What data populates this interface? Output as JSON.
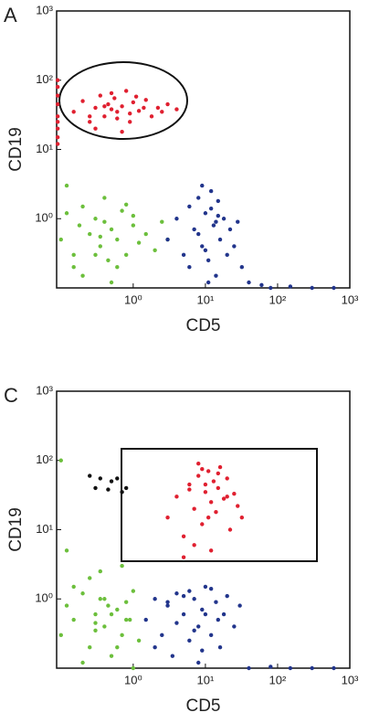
{
  "chart_data": [
    {
      "type": "scatter",
      "panel": "A",
      "x_label": "CD5",
      "y_label": "CD19",
      "xscale": "log",
      "yscale": "log",
      "xlim": [
        0.087,
        1000
      ],
      "ylim": [
        0.1,
        1000
      ],
      "xticks": [
        {
          "value": 1,
          "label": "10⁰"
        },
        {
          "value": 10,
          "label": "10¹"
        },
        {
          "value": 100,
          "label": "10²"
        },
        {
          "value": 1000,
          "label": "10³"
        }
      ],
      "yticks": [
        {
          "value": 1,
          "label": "10⁰"
        },
        {
          "value": 10,
          "label": "10¹"
        },
        {
          "value": 100,
          "label": "10²"
        },
        {
          "value": 1000,
          "label": "10³"
        }
      ],
      "series": [
        {
          "color": "#e02030",
          "x": [
            0.15,
            0.2,
            0.25,
            0.3,
            0.35,
            0.4,
            0.45,
            0.5,
            0.55,
            0.6,
            0.7,
            0.8,
            0.9,
            1,
            1.2,
            1.5,
            1.8,
            2.2,
            3,
            4,
            0.3,
            0.5,
            0.7,
            1.1,
            0.4,
            0.6,
            0.9,
            1.4,
            0.25,
            2.5,
            0.09,
            0.09,
            0.09,
            0.09,
            0.09,
            0.09,
            0.09,
            0.09,
            0.09
          ],
          "y": [
            35,
            50,
            25,
            40,
            60,
            30,
            45,
            38,
            55,
            28,
            42,
            70,
            33,
            48,
            36,
            52,
            30,
            40,
            45,
            38,
            20,
            65,
            18,
            58,
            42,
            35,
            25,
            40,
            30,
            35,
            12,
            20,
            30,
            45,
            60,
            80,
            100,
            15,
            25
          ]
        },
        {
          "color": "#6cbf3c",
          "x": [
            0.1,
            0.12,
            0.15,
            0.18,
            0.2,
            0.25,
            0.3,
            0.35,
            0.4,
            0.45,
            0.5,
            0.6,
            0.7,
            0.8,
            1,
            1.2,
            1.5,
            2,
            2.5,
            3,
            0.15,
            0.3,
            0.5,
            0.8,
            0.2,
            0.4,
            0.6,
            1,
            0.12,
            0.35
          ],
          "y": [
            0.5,
            1.2,
            0.3,
            0.8,
            0.15,
            0.6,
            1,
            0.4,
            2,
            0.25,
            0.7,
            0.5,
            1.3,
            0.3,
            0.8,
            0.45,
            0.6,
            0.35,
            0.9,
            0.5,
            0.2,
            0.3,
            0.12,
            1.6,
            1.5,
            0.9,
            0.2,
            1.1,
            3,
            0.55
          ]
        },
        {
          "color": "#22358c",
          "x": [
            3,
            4,
            5,
            6,
            7,
            8,
            9,
            10,
            11,
            12,
            13,
            14,
            15,
            16,
            18,
            20,
            22,
            25,
            28,
            32,
            8,
            10,
            12,
            14,
            6,
            9,
            11,
            15,
            40,
            60,
            80,
            150,
            300,
            600
          ],
          "y": [
            0.5,
            1,
            0.3,
            1.5,
            0.7,
            2,
            0.4,
            1.2,
            0.25,
            2.5,
            0.8,
            0.15,
            1.8,
            0.5,
            1,
            0.3,
            0.7,
            0.4,
            0.9,
            0.2,
            0.6,
            0.35,
            1.4,
            0.9,
            0.2,
            3,
            0.12,
            1.1,
            0.12,
            0.11,
            0.1,
            0.105,
            0.1,
            0.1
          ]
        }
      ]
    },
    {
      "type": "scatter",
      "panel": "C",
      "x_label": "CD5",
      "y_label": "CD19",
      "xscale": "log",
      "yscale": "log",
      "xlim": [
        0.087,
        1000
      ],
      "ylim": [
        0.1,
        1000
      ],
      "xticks": [
        {
          "value": 1,
          "label": "10⁰"
        },
        {
          "value": 10,
          "label": "10¹"
        },
        {
          "value": 100,
          "label": "10²"
        },
        {
          "value": 1000,
          "label": "10³"
        }
      ],
      "yticks": [
        {
          "value": 1,
          "label": "10⁰"
        },
        {
          "value": 10,
          "label": "10¹"
        },
        {
          "value": 100,
          "label": "10²"
        },
        {
          "value": 1000,
          "label": "10³"
        }
      ],
      "series": [
        {
          "color": "#e02030",
          "x": [
            3,
            4,
            5,
            6,
            7,
            8,
            9,
            10,
            11,
            12,
            13,
            14,
            15,
            16,
            18,
            20,
            22,
            25,
            28,
            32,
            5,
            7,
            9,
            12,
            15,
            8,
            10,
            6,
            11,
            20
          ],
          "y": [
            15,
            30,
            8,
            45,
            20,
            60,
            12,
            35,
            70,
            25,
            50,
            18,
            40,
            80,
            28,
            55,
            10,
            33,
            22,
            15,
            4,
            6,
            75,
            5,
            65,
            90,
            45,
            38,
            15,
            30
          ]
        },
        {
          "color": "#6cbf3c",
          "x": [
            0.1,
            0.12,
            0.15,
            0.2,
            0.25,
            0.3,
            0.35,
            0.4,
            0.5,
            0.6,
            0.7,
            0.8,
            0.9,
            1,
            1.2,
            0.15,
            0.2,
            0.3,
            0.45,
            0.6,
            0.8,
            0.12,
            0.25,
            0.5,
            0.7,
            0.1,
            0.4,
            0.3,
            1,
            0.35
          ],
          "y": [
            0.3,
            0.8,
            0.5,
            1.2,
            0.2,
            0.6,
            1,
            0.4,
            0.15,
            0.7,
            0.3,
            0.9,
            0.5,
            1.3,
            0.25,
            1.5,
            0.12,
            0.35,
            0.8,
            0.2,
            0.5,
            5,
            2,
            0.6,
            3,
            100,
            1,
            0.45,
            0.1,
            2.5
          ]
        },
        {
          "color": "#22358c",
          "x": [
            1.5,
            2,
            2.5,
            3,
            3.5,
            4,
            5,
            6,
            7,
            8,
            9,
            10,
            12,
            14,
            16,
            18,
            20,
            25,
            30,
            2,
            4,
            6,
            8,
            10,
            3,
            5,
            7,
            9,
            12,
            15,
            40,
            80,
            150,
            300,
            600
          ],
          "y": [
            0.5,
            1,
            0.3,
            0.8,
            0.15,
            1.2,
            0.6,
            0.25,
            1,
            0.4,
            0.7,
            1.5,
            0.3,
            0.9,
            0.2,
            0.6,
            1.1,
            0.4,
            0.8,
            0.2,
            0.45,
            1.3,
            0.12,
            0.6,
            0.9,
            1.1,
            0.35,
            0.18,
            1.4,
            0.5,
            0.1,
            0.105,
            0.1,
            0.1,
            0.1
          ]
        },
        {
          "color": "#111111",
          "x": [
            0.25,
            0.35,
            0.5,
            0.6,
            0.3,
            0.45,
            0.7,
            0.8
          ],
          "y": [
            60,
            55,
            50,
            55,
            40,
            38,
            35,
            40
          ]
        }
      ]
    }
  ]
}
